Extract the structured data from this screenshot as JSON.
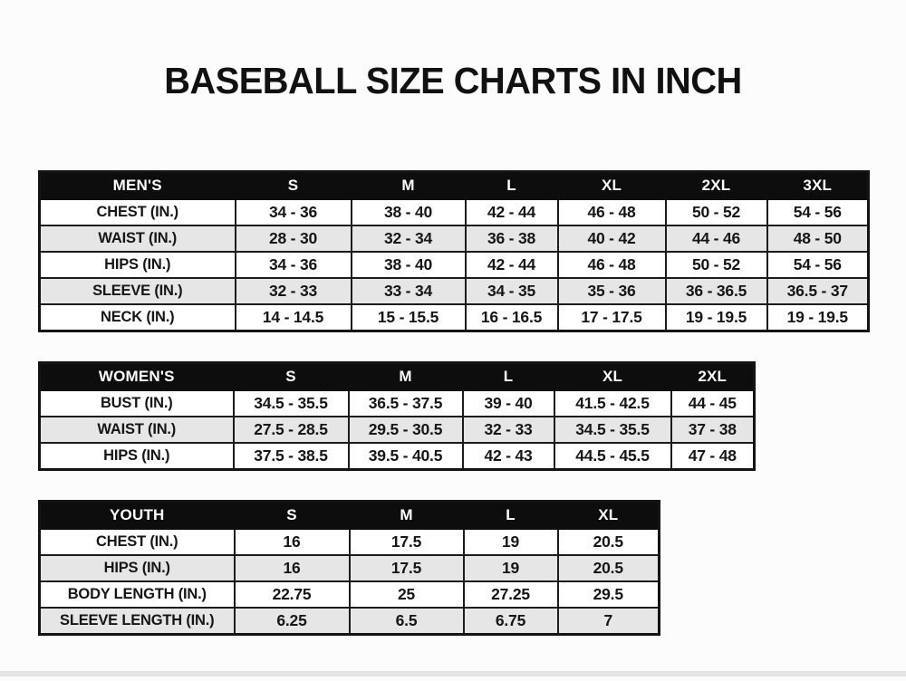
{
  "title": "BASEBALL SIZE CHARTS IN INCH",
  "colors": {
    "header_bg": "#0d0d0d",
    "header_text": "#ffffff",
    "row_alt_bg": "#e6e6e6",
    "border": "#1b1b1b"
  },
  "tables": [
    {
      "name": "mens",
      "header": [
        "MEN'S",
        "S",
        "M",
        "L",
        "XL",
        "2XL",
        "3XL"
      ],
      "rows": [
        {
          "label": "CHEST (IN.)",
          "values": [
            "34 - 36",
            "38 - 40",
            "42 - 44",
            "46 - 48",
            "50 - 52",
            "54 - 56"
          ]
        },
        {
          "label": "WAIST (IN.)",
          "values": [
            "28 - 30",
            "32 - 34",
            "36 - 38",
            "40 - 42",
            "44 - 46",
            "48 - 50"
          ]
        },
        {
          "label": "HIPS (IN.)",
          "values": [
            "34 - 36",
            "38 - 40",
            "42 - 44",
            "46 - 48",
            "50 - 52",
            "54 - 56"
          ]
        },
        {
          "label": "SLEEVE (IN.)",
          "values": [
            "32 - 33",
            "33 - 34",
            "34 - 35",
            "35 - 36",
            "36 - 36.5",
            "36.5 - 37"
          ]
        },
        {
          "label": "NECK (IN.)",
          "values": [
            "14 - 14.5",
            "15 - 15.5",
            "16 - 16.5",
            "17 - 17.5",
            "19 - 19.5",
            "19 - 19.5"
          ]
        }
      ]
    },
    {
      "name": "womens",
      "header": [
        "WOMEN'S",
        "S",
        "M",
        "L",
        "XL",
        "2XL"
      ],
      "rows": [
        {
          "label": "BUST (IN.)",
          "values": [
            "34.5 - 35.5",
            "36.5 - 37.5",
            "39 - 40",
            "41.5 - 42.5",
            "44 - 45"
          ]
        },
        {
          "label": "WAIST (IN.)",
          "values": [
            "27.5 - 28.5",
            "29.5 - 30.5",
            "32 - 33",
            "34.5 - 35.5",
            "37 - 38"
          ]
        },
        {
          "label": "HIPS (IN.)",
          "values": [
            "37.5 - 38.5",
            "39.5 - 40.5",
            "42 - 43",
            "44.5 - 45.5",
            "47 - 48"
          ]
        }
      ]
    },
    {
      "name": "youth",
      "header": [
        "YOUTH",
        "S",
        "M",
        "L",
        "XL"
      ],
      "rows": [
        {
          "label": "CHEST (IN.)",
          "values": [
            "16",
            "17.5",
            "19",
            "20.5"
          ]
        },
        {
          "label": "HIPS (IN.)",
          "values": [
            "16",
            "17.5",
            "19",
            "20.5"
          ]
        },
        {
          "label": "BODY LENGTH (IN.)",
          "values": [
            "22.75",
            "25",
            "27.25",
            "29.5"
          ]
        },
        {
          "label": "SLEEVE LENGTH (IN.)",
          "values": [
            "6.25",
            "6.5",
            "6.75",
            "7"
          ]
        }
      ]
    }
  ]
}
